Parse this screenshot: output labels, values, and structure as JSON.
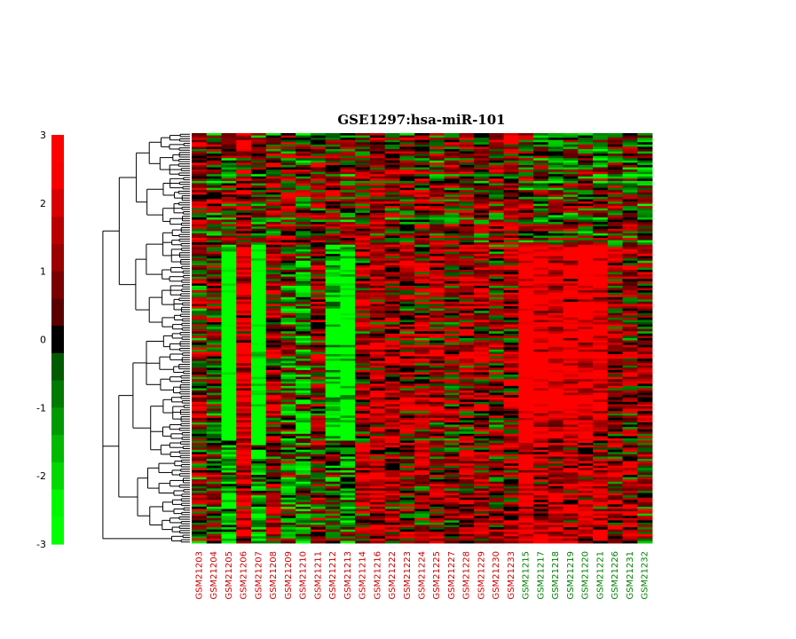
{
  "chart_data": {
    "type": "heatmap",
    "title": "GSE1297:hsa-miR-101",
    "colorbar": {
      "range": [
        -3,
        3
      ],
      "ticks": [
        "3",
        "2",
        "1",
        "0",
        "-1",
        "-2",
        "-3"
      ],
      "colors": {
        "high": "#ff0000",
        "mid": "#000000",
        "low": "#00ff00"
      }
    },
    "columns": [
      {
        "label": "GSM21203",
        "color": "#cc0000"
      },
      {
        "label": "GSM21204",
        "color": "#cc0000"
      },
      {
        "label": "GSM21205",
        "color": "#cc0000"
      },
      {
        "label": "GSM21206",
        "color": "#cc0000"
      },
      {
        "label": "GSM21207",
        "color": "#cc0000"
      },
      {
        "label": "GSM21208",
        "color": "#cc0000"
      },
      {
        "label": "GSM21209",
        "color": "#cc0000"
      },
      {
        "label": "GSM21210",
        "color": "#cc0000"
      },
      {
        "label": "GSM21211",
        "color": "#cc0000"
      },
      {
        "label": "GSM21212",
        "color": "#cc0000"
      },
      {
        "label": "GSM21213",
        "color": "#cc0000"
      },
      {
        "label": "GSM21214",
        "color": "#cc0000"
      },
      {
        "label": "GSM21216",
        "color": "#cc0000"
      },
      {
        "label": "GSM21222",
        "color": "#cc0000"
      },
      {
        "label": "GSM21223",
        "color": "#cc0000"
      },
      {
        "label": "GSM21224",
        "color": "#cc0000"
      },
      {
        "label": "GSM21225",
        "color": "#cc0000"
      },
      {
        "label": "GSM21227",
        "color": "#cc0000"
      },
      {
        "label": "GSM21228",
        "color": "#cc0000"
      },
      {
        "label": "GSM21229",
        "color": "#cc0000"
      },
      {
        "label": "GSM21230",
        "color": "#cc0000"
      },
      {
        "label": "GSM21233",
        "color": "#cc0000"
      },
      {
        "label": "GSM21215",
        "color": "#008000"
      },
      {
        "label": "GSM21217",
        "color": "#008000"
      },
      {
        "label": "GSM21218",
        "color": "#008000"
      },
      {
        "label": "GSM21219",
        "color": "#008000"
      },
      {
        "label": "GSM21220",
        "color": "#008000"
      },
      {
        "label": "GSM21221",
        "color": "#008000"
      },
      {
        "label": "GSM21226",
        "color": "#008000"
      },
      {
        "label": "GSM21231",
        "color": "#008000"
      },
      {
        "label": "GSM21232",
        "color": "#008000"
      }
    ],
    "rows": 180,
    "column_tendency": [
      0.15,
      0.1,
      -0.6,
      0.7,
      -0.5,
      0.3,
      -0.1,
      -0.35,
      0.2,
      -0.1,
      -0.3,
      0.35,
      0.55,
      0.4,
      0.35,
      0.3,
      0.35,
      0.25,
      0.35,
      0.4,
      0.2,
      0.35,
      0.9,
      0.6,
      0.55,
      0.5,
      0.55,
      0.5,
      0.4,
      0.35,
      0.15
    ]
  }
}
